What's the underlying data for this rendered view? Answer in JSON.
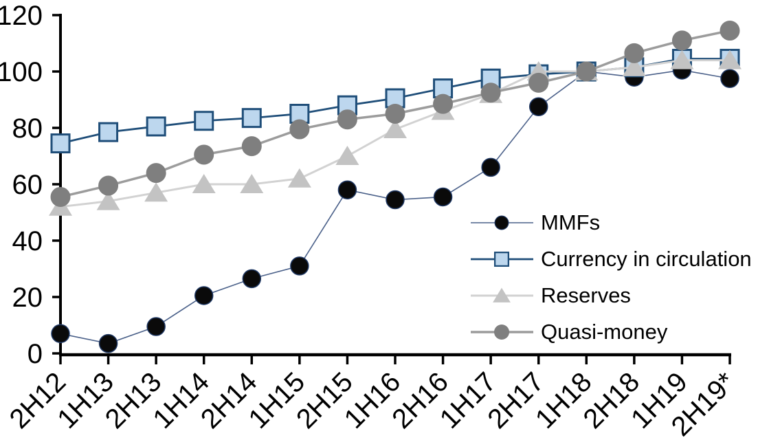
{
  "chart_data": {
    "type": "line",
    "title": "",
    "xlabel": "",
    "ylabel": "",
    "ylim": [
      0,
      120
    ],
    "yticks": [
      0,
      20,
      40,
      60,
      80,
      100,
      120
    ],
    "grid": false,
    "legend_position": "inside-right",
    "axis_color": "#000000",
    "background_color": "#ffffff",
    "categories": [
      "2H12",
      "1H13",
      "2H13",
      "1H14",
      "2H14",
      "1H15",
      "2H15",
      "1H16",
      "2H16",
      "1H17",
      "2H17",
      "1H18",
      "2H18",
      "1H19",
      "2H19*"
    ],
    "series": [
      {
        "name": "MMFs",
        "marker": "circle",
        "marker_fill": "#0a0a0a",
        "marker_stroke": "#1f3864",
        "line_color": "#4a6089",
        "values": [
          7,
          3.5,
          9.5,
          20.5,
          26.5,
          31,
          58,
          54.5,
          55.5,
          66,
          87.5,
          100,
          98,
          100.5,
          97.5
        ]
      },
      {
        "name": "Currency in circulation",
        "marker": "square",
        "marker_fill": "#bdd7ee",
        "marker_stroke": "#1f4e79",
        "line_color": "#1f4e79",
        "values": [
          74.5,
          78.5,
          80.5,
          82.5,
          83.5,
          85,
          88,
          90.5,
          94,
          97.5,
          99,
          100,
          101.5,
          104.5,
          104.5
        ]
      },
      {
        "name": "Reserves",
        "marker": "triangle",
        "marker_fill": "#c3c3c3",
        "marker_stroke": "none",
        "line_color": "#d2d2d2",
        "values": [
          52,
          54,
          57,
          60,
          60,
          62,
          70,
          79.5,
          86,
          92,
          100,
          100,
          101.5,
          104,
          104
        ]
      },
      {
        "name": "Quasi-money",
        "marker": "circle",
        "marker_fill": "#7f7f7f",
        "marker_stroke": "none",
        "line_color": "#9c9c9c",
        "values": [
          55.5,
          59.5,
          64,
          70.5,
          73.5,
          79.5,
          83,
          85,
          88.5,
          92.5,
          96,
          100,
          106.5,
          111,
          114.5
        ]
      }
    ]
  }
}
